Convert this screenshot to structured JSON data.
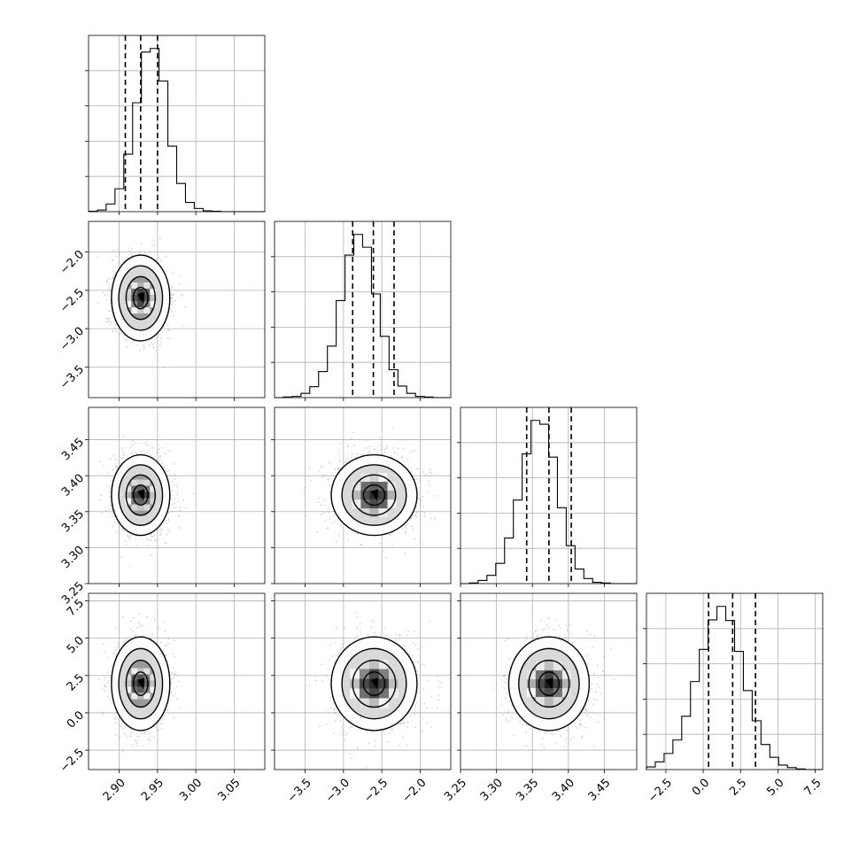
{
  "chart_data": {
    "type": "corner",
    "grid": true,
    "parameters": [
      {
        "range": [
          2.86,
          3.09
        ],
        "ticks": [
          2.9,
          2.95,
          3.0,
          3.05
        ],
        "tick_labels": [
          "2.90",
          "2.95",
          "3.00",
          "3.05"
        ],
        "mean": 2.928,
        "sd": 0.017,
        "quantiles": [
          2.908,
          2.928,
          2.95
        ]
      },
      {
        "range": [
          -3.9,
          -1.6
        ],
        "ticks": [
          -3.5,
          -3.0,
          -2.5,
          -2.0
        ],
        "tick_labels": [
          "−3.5",
          "−3.0",
          "−2.5",
          "−2.0"
        ],
        "mean": -2.6,
        "sd": 0.25,
        "quantiles": [
          -2.88,
          -2.61,
          -2.34
        ]
      },
      {
        "range": [
          3.25,
          3.495
        ],
        "ticks": [
          3.25,
          3.3,
          3.35,
          3.4,
          3.45
        ],
        "tick_labels": [
          "3.25",
          "3.30",
          "3.35",
          "3.40",
          "3.45"
        ],
        "mean": 3.373,
        "sd": 0.025,
        "quantiles": [
          3.342,
          3.373,
          3.404
        ]
      },
      {
        "range": [
          -3.8,
          8.0
        ],
        "ticks": [
          -2.5,
          0.0,
          2.5,
          5.0,
          7.5
        ],
        "tick_labels": [
          "−2.5",
          "0.0",
          "2.5",
          "5.0",
          "7.5"
        ],
        "mean": 1.95,
        "sd": 1.4,
        "quantiles": [
          0.36,
          1.97,
          3.5
        ]
      }
    ],
    "histograms": [
      {
        "param": 0,
        "bins": 20,
        "counts": [
          1,
          4,
          19,
          57,
          143,
          271,
          397,
          406,
          325,
          163,
          70,
          23,
          8,
          2,
          1,
          0,
          0,
          0,
          0,
          0
        ]
      },
      {
        "param": 1,
        "bins": 20,
        "counts": [
          0,
          1,
          2,
          7,
          18,
          43,
          85,
          160,
          235,
          269,
          248,
          171,
          101,
          46,
          19,
          7,
          2,
          1,
          0,
          0
        ]
      },
      {
        "param": 2,
        "bins": 20,
        "counts": [
          0,
          1,
          5,
          13,
          32,
          72,
          132,
          205,
          258,
          252,
          200,
          120,
          60,
          23,
          8,
          2,
          1,
          0,
          0,
          0
        ]
      },
      {
        "param": 3,
        "bins": 20,
        "counts": [
          4,
          12,
          25,
          46,
          83,
          137,
          187,
          233,
          254,
          232,
          184,
          123,
          76,
          39,
          19,
          7,
          3,
          1,
          0,
          0
        ]
      }
    ],
    "pairs": [
      {
        "x": 0,
        "y": 1,
        "x_center": 2.928,
        "y_center": -2.6,
        "x_sd": 0.017,
        "y_sd": 0.25
      },
      {
        "x": 0,
        "y": 2,
        "x_center": 2.928,
        "y_center": 3.373,
        "x_sd": 0.017,
        "y_sd": 0.025
      },
      {
        "x": 1,
        "y": 2,
        "x_center": -2.6,
        "y_center": 3.373,
        "x_sd": 0.25,
        "y_sd": 0.025
      },
      {
        "x": 0,
        "y": 3,
        "x_center": 2.928,
        "y_center": 1.95,
        "x_sd": 0.017,
        "y_sd": 1.4
      },
      {
        "x": 1,
        "y": 3,
        "x_center": -2.6,
        "y_center": 1.95,
        "x_sd": 0.25,
        "y_sd": 1.4
      },
      {
        "x": 2,
        "y": 3,
        "x_center": 3.373,
        "y_center": 1.95,
        "x_sd": 0.025,
        "y_sd": 1.4
      }
    ],
    "contour_levels_sigma": [
      0.5,
      1.0,
      1.5,
      2.0
    ]
  }
}
